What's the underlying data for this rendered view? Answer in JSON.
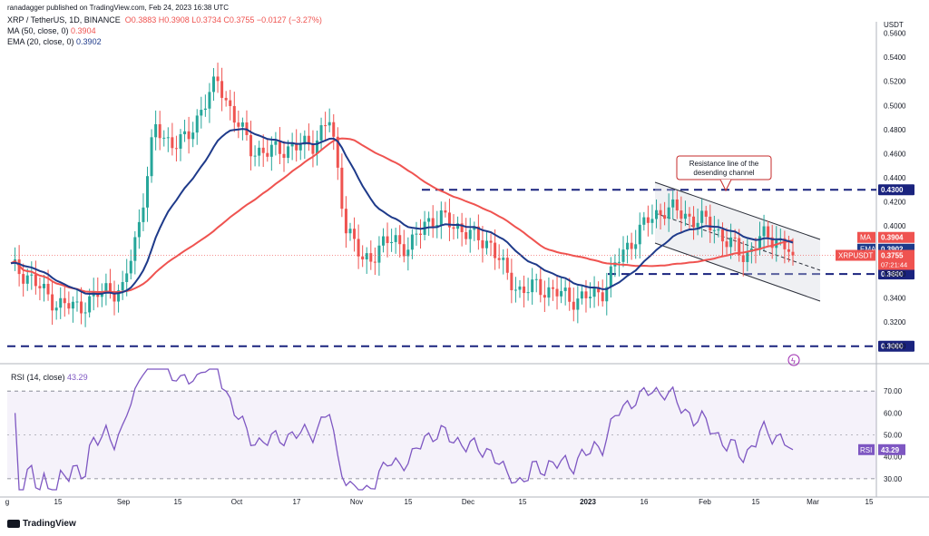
{
  "header": {
    "author_line": "ranadagger published on TradingView.com, Feb 24, 2023 16:38 UTC",
    "symbol": "XRP / TetherUS, 1D, BINANCE",
    "ohlc": "O0.3883  H0.3908  L0.3734  C0.3755  −0.0127 (−3.27%)",
    "ma_label": "MA (50, close, 0)",
    "ma_value": "0.3904",
    "ema_label": "EMA (20, close, 0)",
    "ema_value": "0.3902",
    "rsi_label": "RSI (14, close)",
    "rsi_value": "43.29"
  },
  "branding": {
    "logo_text": "TradingView"
  },
  "colors": {
    "up": "#26a69a",
    "down": "#ef5350",
    "ma50": "#ef5350",
    "ema20": "#1e3a8a",
    "rsi": "#7e57c2",
    "level": "#1a237e",
    "channel": "#2a2e39"
  },
  "chart_data": {
    "type": "candlestick",
    "title": "XRP / TetherUS, 1D, BINANCE",
    "price_axis_label": "USDT",
    "price_ticks": [
      "0.5600",
      "0.5400",
      "0.5200",
      "0.5000",
      "0.4800",
      "0.4600",
      "0.4400",
      "0.4200",
      "0.4000",
      "0.3800",
      "0.3600",
      "0.3400",
      "0.3200",
      "0.3000"
    ],
    "price_range": [
      0.29,
      0.562
    ],
    "x_ticks": [
      "g",
      "15",
      "Sep",
      "15",
      "Oct",
      "17",
      "Nov",
      "15",
      "Dec",
      "15",
      "2023",
      "16",
      "Feb",
      "15",
      "Mar",
      "15"
    ],
    "close_series": [
      {
        "date": "Aug 20",
        "close": 0.365
      },
      {
        "date": "Aug 24",
        "close": 0.36
      },
      {
        "date": "Aug 28",
        "close": 0.345
      },
      {
        "date": "Sep 1",
        "close": 0.335
      },
      {
        "date": "Sep 5",
        "close": 0.332
      },
      {
        "date": "Sep 9",
        "close": 0.338
      },
      {
        "date": "Sep 13",
        "close": 0.348
      },
      {
        "date": "Sep 17",
        "close": 0.345
      },
      {
        "date": "Sep 20",
        "close": 0.4
      },
      {
        "date": "Sep 23",
        "close": 0.48
      },
      {
        "date": "Sep 27",
        "close": 0.47
      },
      {
        "date": "Oct 1",
        "close": 0.47
      },
      {
        "date": "Oct 5",
        "close": 0.5
      },
      {
        "date": "Oct 9",
        "close": 0.52
      },
      {
        "date": "Oct 13",
        "close": 0.49
      },
      {
        "date": "Oct 17",
        "close": 0.465
      },
      {
        "date": "Oct 21",
        "close": 0.46
      },
      {
        "date": "Oct 25",
        "close": 0.465
      },
      {
        "date": "Oct 29",
        "close": 0.465
      },
      {
        "date": "Nov 2",
        "close": 0.47
      },
      {
        "date": "Nov 6",
        "close": 0.488
      },
      {
        "date": "Nov 8",
        "close": 0.4
      },
      {
        "date": "Nov 10",
        "close": 0.37
      },
      {
        "date": "Nov 14",
        "close": 0.38
      },
      {
        "date": "Nov 18",
        "close": 0.39
      },
      {
        "date": "Nov 22",
        "close": 0.38
      },
      {
        "date": "Nov 26",
        "close": 0.405
      },
      {
        "date": "Nov 30",
        "close": 0.405
      },
      {
        "date": "Dec 4",
        "close": 0.4
      },
      {
        "date": "Dec 8",
        "close": 0.39
      },
      {
        "date": "Dec 12",
        "close": 0.387
      },
      {
        "date": "Dec 15",
        "close": 0.36
      },
      {
        "date": "Dec 19",
        "close": 0.345
      },
      {
        "date": "Dec 23",
        "close": 0.35
      },
      {
        "date": "Dec 27",
        "close": 0.345
      },
      {
        "date": "Dec 31",
        "close": 0.34
      },
      {
        "date": "Jan 4",
        "close": 0.34
      },
      {
        "date": "Jan 8",
        "close": 0.345
      },
      {
        "date": "Jan 12",
        "close": 0.37
      },
      {
        "date": "Jan 16",
        "close": 0.39
      },
      {
        "date": "Jan 20",
        "close": 0.405
      },
      {
        "date": "Jan 24",
        "close": 0.415
      },
      {
        "date": "Jan 28",
        "close": 0.41
      },
      {
        "date": "Feb 1",
        "close": 0.405
      },
      {
        "date": "Feb 5",
        "close": 0.4
      },
      {
        "date": "Feb 9",
        "close": 0.385
      },
      {
        "date": "Feb 13",
        "close": 0.375
      },
      {
        "date": "Feb 17",
        "close": 0.39
      },
      {
        "date": "Feb 21",
        "close": 0.39
      },
      {
        "date": "Feb 24",
        "close": 0.3755
      }
    ],
    "horizontal_levels": [
      {
        "label": "0.4300",
        "value": 0.43
      },
      {
        "label": "0.3600",
        "value": 0.36
      },
      {
        "label": "0.3000",
        "value": 0.3
      }
    ],
    "price_badges": [
      {
        "label": "MA",
        "value": "0.3904",
        "color": "#ef5350"
      },
      {
        "label": "EMA",
        "value": "0.3902",
        "color": "#1e3a8a"
      },
      {
        "label": "XRPUSDT",
        "value": "0.3755",
        "countdown": "07:21:44",
        "color": "#ef5350"
      }
    ],
    "annotation": "Resistance line of the desending channel",
    "rsi": {
      "ticks": [
        "70.00",
        "60.00",
        "50.00",
        "40.00",
        "30.00"
      ],
      "range": [
        25,
        80
      ],
      "overbought": 70,
      "oversold": 30,
      "last": "43.29",
      "badge": "RSI"
    }
  }
}
